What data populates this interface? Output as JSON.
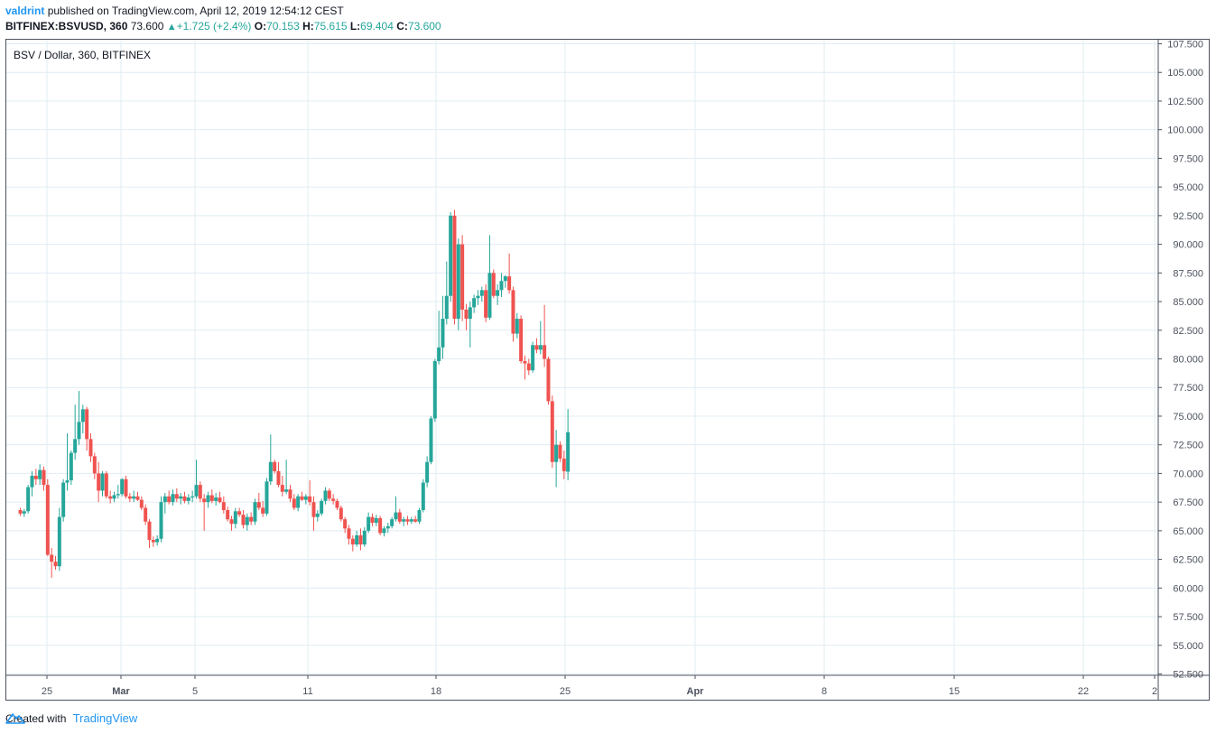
{
  "header": {
    "author": "valdrint",
    "published_text": "published on TradingView.com, April 12, 2019 12:54:12 CEST",
    "symbol": "BITFINEX:BSVUSD, 360",
    "last": "73.600",
    "change": "+1.725 (+2.4%)",
    "o_label": "O:",
    "o_value": "70.153",
    "h_label": "H:",
    "h_value": "75.615",
    "l_label": "L:",
    "l_value": "69.404",
    "c_label": "C:",
    "c_value": "73.600"
  },
  "footer": {
    "created_with": "Created with",
    "brand": "TradingView"
  },
  "colors": {
    "up": "#26a69a",
    "down": "#ef5350",
    "grid": "#e1ecf2",
    "axis_text": "#4c525e",
    "author": "#2196f3"
  },
  "chart_data": {
    "type": "candlestick",
    "title": "BSV / Dollar, 360, BITFINEX",
    "ylim": [
      52.5,
      107.5
    ],
    "y_ticks": [
      "52.500",
      "55.000",
      "57.500",
      "60.000",
      "62.500",
      "65.000",
      "67.500",
      "70.000",
      "72.500",
      "75.000",
      "77.500",
      "80.000",
      "82.500",
      "85.000",
      "87.500",
      "90.000",
      "92.500",
      "95.000",
      "97.500",
      "100.000",
      "102.500",
      "105.000",
      "107.500"
    ],
    "x_ticks": [
      "25",
      "Mar",
      "5",
      "11",
      "18",
      "25",
      "Apr",
      "8",
      "15",
      "22",
      "2"
    ],
    "x_ticks_bold": [
      "Mar",
      "Apr"
    ],
    "candles": [
      [
        66.8,
        67.0,
        66.3,
        66.5
      ],
      [
        66.5,
        66.9,
        66.2,
        66.7
      ],
      [
        66.7,
        69.0,
        66.5,
        68.8
      ],
      [
        68.8,
        70.2,
        68.0,
        69.8
      ],
      [
        69.8,
        70.4,
        69.0,
        69.5
      ],
      [
        69.5,
        70.8,
        69.0,
        70.3
      ],
      [
        70.3,
        70.6,
        68.5,
        69.0
      ],
      [
        69.0,
        69.5,
        62.8,
        62.9
      ],
      [
        62.9,
        63.5,
        60.9,
        62.3
      ],
      [
        62.3,
        62.8,
        61.6,
        61.9
      ],
      [
        61.9,
        67.0,
        61.5,
        66.2
      ],
      [
        66.2,
        69.5,
        65.8,
        69.2
      ],
      [
        69.2,
        73.5,
        68.5,
        69.4
      ],
      [
        69.4,
        72.0,
        69.0,
        71.8
      ],
      [
        71.8,
        76.0,
        71.2,
        73.0
      ],
      [
        73.0,
        77.2,
        72.5,
        74.5
      ],
      [
        74.5,
        76.0,
        73.5,
        75.6
      ],
      [
        75.6,
        75.8,
        72.0,
        73.0
      ],
      [
        73.0,
        73.5,
        71.0,
        71.5
      ],
      [
        71.5,
        71.8,
        69.5,
        70.0
      ],
      [
        70.0,
        71.0,
        67.5,
        68.5
      ],
      [
        68.5,
        70.2,
        68.0,
        70.0
      ],
      [
        70.0,
        70.2,
        67.8,
        68.0
      ],
      [
        68.0,
        68.5,
        67.4,
        67.8
      ],
      [
        67.8,
        68.4,
        67.5,
        68.1
      ],
      [
        68.1,
        69.0,
        67.8,
        68.2
      ],
      [
        68.2,
        69.6,
        68.0,
        69.5
      ],
      [
        69.5,
        69.8,
        67.8,
        68.0
      ],
      [
        68.0,
        68.3,
        67.5,
        67.8
      ],
      [
        67.8,
        68.5,
        67.5,
        68.0
      ],
      [
        68.0,
        68.4,
        67.6,
        67.7
      ],
      [
        67.7,
        68.0,
        66.8,
        67.0
      ],
      [
        67.0,
        67.3,
        65.5,
        65.8
      ],
      [
        65.8,
        66.0,
        63.5,
        64.2
      ],
      [
        64.2,
        64.5,
        63.6,
        64.0
      ],
      [
        64.0,
        64.6,
        63.7,
        64.3
      ],
      [
        64.3,
        68.0,
        64.0,
        67.5
      ],
      [
        67.5,
        68.3,
        66.5,
        68.0
      ],
      [
        68.0,
        68.5,
        67.3,
        67.5
      ],
      [
        67.5,
        68.6,
        67.2,
        68.2
      ],
      [
        68.2,
        68.7,
        67.5,
        67.8
      ],
      [
        67.8,
        68.3,
        67.3,
        68.0
      ],
      [
        68.0,
        68.4,
        67.4,
        67.6
      ],
      [
        67.6,
        68.2,
        67.3,
        67.9
      ],
      [
        67.9,
        68.5,
        67.5,
        68.0
      ],
      [
        68.0,
        71.2,
        67.8,
        69.0
      ],
      [
        69.0,
        69.3,
        67.5,
        67.8
      ],
      [
        67.8,
        68.2,
        65.0,
        67.5
      ],
      [
        67.5,
        68.4,
        67.0,
        68.1
      ],
      [
        68.1,
        68.6,
        67.4,
        67.6
      ],
      [
        67.6,
        68.3,
        67.2,
        67.9
      ],
      [
        67.9,
        68.4,
        67.4,
        67.5
      ],
      [
        67.5,
        68.0,
        66.5,
        66.8
      ],
      [
        66.8,
        67.1,
        65.8,
        66.0
      ],
      [
        66.0,
        66.3,
        65.0,
        65.6
      ],
      [
        65.6,
        67.0,
        65.2,
        66.7
      ],
      [
        66.7,
        67.0,
        66.2,
        66.4
      ],
      [
        66.4,
        66.8,
        65.2,
        65.5
      ],
      [
        65.5,
        66.5,
        65.0,
        66.2
      ],
      [
        66.2,
        66.6,
        65.5,
        65.8
      ],
      [
        65.8,
        67.8,
        65.5,
        67.5
      ],
      [
        67.5,
        68.3,
        66.8,
        67.0
      ],
      [
        67.0,
        67.6,
        66.2,
        66.5
      ],
      [
        66.5,
        69.6,
        66.3,
        69.3
      ],
      [
        69.3,
        73.4,
        69.0,
        71.0
      ],
      [
        71.0,
        71.2,
        70.0,
        70.2
      ],
      [
        70.2,
        71.0,
        68.8,
        69.0
      ],
      [
        69.0,
        69.8,
        68.0,
        68.4
      ],
      [
        68.4,
        71.2,
        68.2,
        68.6
      ],
      [
        68.6,
        69.0,
        67.5,
        67.8
      ],
      [
        67.8,
        68.2,
        66.8,
        67.0
      ],
      [
        67.0,
        68.2,
        66.7,
        68.0
      ],
      [
        68.0,
        68.4,
        67.6,
        67.7
      ],
      [
        67.7,
        68.2,
        67.3,
        68.0
      ],
      [
        68.0,
        69.4,
        67.2,
        67.5
      ],
      [
        67.5,
        68.0,
        65.0,
        66.2
      ],
      [
        66.2,
        66.8,
        65.8,
        66.5
      ],
      [
        66.5,
        67.8,
        66.3,
        67.6
      ],
      [
        67.6,
        68.8,
        67.3,
        68.5
      ],
      [
        68.5,
        68.7,
        67.6,
        67.8
      ],
      [
        67.8,
        68.2,
        67.3,
        67.6
      ],
      [
        67.6,
        67.8,
        66.8,
        67.0
      ],
      [
        67.0,
        67.2,
        65.8,
        66.0
      ],
      [
        66.0,
        66.2,
        64.8,
        65.2
      ],
      [
        65.2,
        65.5,
        63.8,
        64.3
      ],
      [
        64.3,
        64.6,
        63.2,
        63.8
      ],
      [
        63.8,
        65.0,
        63.6,
        64.6
      ],
      [
        64.6,
        65.2,
        63.3,
        63.8
      ],
      [
        63.8,
        65.3,
        63.6,
        65.0
      ],
      [
        65.0,
        66.6,
        64.8,
        66.2
      ],
      [
        66.2,
        66.5,
        65.4,
        65.7
      ],
      [
        65.7,
        66.4,
        65.4,
        66.1
      ],
      [
        66.1,
        66.3,
        64.6,
        64.8
      ],
      [
        64.8,
        65.4,
        64.5,
        65.2
      ],
      [
        65.2,
        65.7,
        64.8,
        65.4
      ],
      [
        65.4,
        66.2,
        65.2,
        66.0
      ],
      [
        66.0,
        68.0,
        65.8,
        66.6
      ],
      [
        66.6,
        66.9,
        65.6,
        65.8
      ],
      [
        65.8,
        66.2,
        65.4,
        66.0
      ],
      [
        66.0,
        66.3,
        65.5,
        65.8
      ],
      [
        65.8,
        66.2,
        65.6,
        66.0
      ],
      [
        66.0,
        66.3,
        65.7,
        65.8
      ],
      [
        65.8,
        67.0,
        65.6,
        66.8
      ],
      [
        66.8,
        69.5,
        66.6,
        69.2
      ],
      [
        69.2,
        71.5,
        68.8,
        71.0
      ],
      [
        71.0,
        75.0,
        70.8,
        74.8
      ],
      [
        74.8,
        80.0,
        74.5,
        79.8
      ],
      [
        79.8,
        84.2,
        79.5,
        81.0
      ],
      [
        81.0,
        85.5,
        80.0,
        83.5
      ],
      [
        83.5,
        88.5,
        83.0,
        85.5
      ],
      [
        85.5,
        92.8,
        85.0,
        92.5
      ],
      [
        92.5,
        93.0,
        83.0,
        83.5
      ],
      [
        83.5,
        90.5,
        82.5,
        90.0
      ],
      [
        90.0,
        90.8,
        83.3,
        84.3
      ],
      [
        84.3,
        84.8,
        82.5,
        83.5
      ],
      [
        83.5,
        85.0,
        81.0,
        84.5
      ],
      [
        84.5,
        85.6,
        84.0,
        85.3
      ],
      [
        85.3,
        86.0,
        84.7,
        85.5
      ],
      [
        85.5,
        86.3,
        85.0,
        86.0
      ],
      [
        86.0,
        86.5,
        83.2,
        83.6
      ],
      [
        83.6,
        90.8,
        83.4,
        87.5
      ],
      [
        87.5,
        87.8,
        85.3,
        85.5
      ],
      [
        85.5,
        86.5,
        84.7,
        86.0
      ],
      [
        86.0,
        87.5,
        85.4,
        86.8
      ],
      [
        86.8,
        87.3,
        86.2,
        87.2
      ],
      [
        87.2,
        89.2,
        85.7,
        86.0
      ],
      [
        86.0,
        86.3,
        81.5,
        82.2
      ],
      [
        82.2,
        84.0,
        81.8,
        83.5
      ],
      [
        83.5,
        83.8,
        79.6,
        79.8
      ],
      [
        79.8,
        80.3,
        78.2,
        79.6
      ],
      [
        79.6,
        80.0,
        78.6,
        79.0
      ],
      [
        79.0,
        81.5,
        78.8,
        81.2
      ],
      [
        81.2,
        81.8,
        80.5,
        80.8
      ],
      [
        80.8,
        83.3,
        80.4,
        81.2
      ],
      [
        81.2,
        84.7,
        79.3,
        80.0
      ],
      [
        80.0,
        80.2,
        76.0,
        76.3
      ],
      [
        76.3,
        76.8,
        70.5,
        71.0
      ],
      [
        71.0,
        73.8,
        68.8,
        72.5
      ],
      [
        72.5,
        72.8,
        71.0,
        71.3
      ],
      [
        71.3,
        72.0,
        69.5,
        70.2
      ],
      [
        70.153,
        75.615,
        69.404,
        73.6
      ]
    ],
    "candle_x_start": 21.5,
    "candle_x_step": 4.333
  }
}
